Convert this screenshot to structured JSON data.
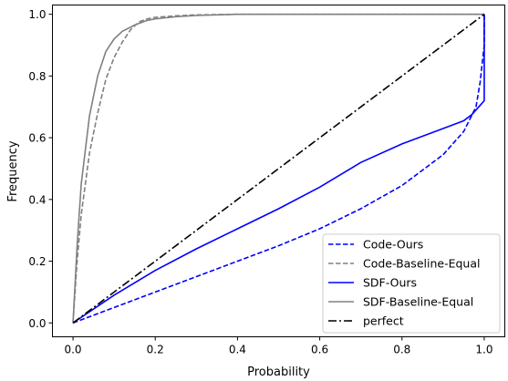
{
  "chart_data": {
    "type": "line",
    "title": "",
    "xlabel": "Probability",
    "ylabel": "Frequency",
    "xlim": [
      -0.05,
      1.05
    ],
    "ylim": [
      -0.045,
      1.03
    ],
    "xticks": [
      0.0,
      0.2,
      0.4,
      0.6,
      0.8,
      1.0
    ],
    "xtick_labels": [
      "0.0",
      "0.2",
      "0.4",
      "0.6",
      "0.8",
      "1.0"
    ],
    "yticks": [
      0.0,
      0.2,
      0.4,
      0.6,
      0.8,
      1.0
    ],
    "ytick_labels": [
      "0.0",
      "0.2",
      "0.4",
      "0.6",
      "0.8",
      "1.0"
    ],
    "grid": false,
    "legend_position": "lower-right",
    "series": [
      {
        "name": "Code-Ours",
        "color": "#0000ff",
        "dash": "dashed",
        "x": [
          0.0,
          0.1,
          0.2,
          0.3,
          0.4,
          0.5,
          0.6,
          0.7,
          0.8,
          0.9,
          0.95,
          0.98,
          0.99,
          1.0,
          1.0
        ],
        "y": [
          0.0,
          0.05,
          0.1,
          0.15,
          0.2,
          0.25,
          0.305,
          0.37,
          0.445,
          0.545,
          0.62,
          0.7,
          0.78,
          0.9,
          1.0
        ]
      },
      {
        "name": "Code-Baseline-Equal",
        "color": "#808080",
        "dash": "dashed",
        "x": [
          0.0,
          0.01,
          0.02,
          0.04,
          0.06,
          0.08,
          0.1,
          0.12,
          0.14,
          0.16,
          0.18,
          0.2,
          0.25,
          0.3,
          0.4,
          0.6,
          1.0
        ],
        "y": [
          0.0,
          0.2,
          0.35,
          0.55,
          0.68,
          0.79,
          0.86,
          0.91,
          0.95,
          0.975,
          0.985,
          0.99,
          0.995,
          0.998,
          1.0,
          1.0,
          1.0
        ]
      },
      {
        "name": "SDF-Ours",
        "color": "#0000ff",
        "dash": "solid",
        "x": [
          0.0,
          0.1,
          0.2,
          0.3,
          0.4,
          0.5,
          0.6,
          0.7,
          0.8,
          0.9,
          0.95,
          0.97,
          0.99,
          1.0,
          1.0
        ],
        "y": [
          0.0,
          0.09,
          0.17,
          0.24,
          0.305,
          0.37,
          0.44,
          0.52,
          0.58,
          0.63,
          0.655,
          0.675,
          0.705,
          0.72,
          1.0
        ]
      },
      {
        "name": "SDF-Baseline-Equal",
        "color": "#808080",
        "dash": "solid",
        "x": [
          0.0,
          0.01,
          0.02,
          0.04,
          0.06,
          0.08,
          0.1,
          0.12,
          0.15,
          0.18,
          0.2,
          0.25,
          0.3,
          0.4,
          0.6,
          1.0
        ],
        "y": [
          0.0,
          0.25,
          0.45,
          0.67,
          0.8,
          0.88,
          0.92,
          0.945,
          0.965,
          0.98,
          0.985,
          0.992,
          0.996,
          1.0,
          1.0,
          1.0
        ]
      },
      {
        "name": "perfect",
        "color": "#000000",
        "dash": "dashdot",
        "x": [
          0.0,
          1.0
        ],
        "y": [
          0.0,
          1.0
        ]
      }
    ]
  }
}
